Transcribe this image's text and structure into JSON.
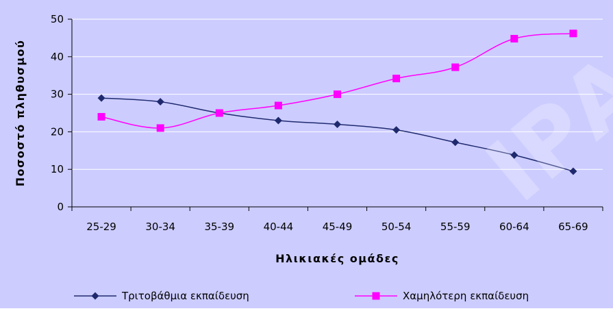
{
  "chart_data": {
    "type": "line",
    "title": "",
    "xlabel": "Ηλικιακές ομάδες",
    "ylabel": "Ποσοστό πληθυσμού",
    "categories": [
      "25-29",
      "30-34",
      "35-39",
      "40-44",
      "45-49",
      "50-54",
      "55-59",
      "60-64",
      "65-69"
    ],
    "ylim": [
      0,
      50
    ],
    "yticks": [
      0,
      10,
      20,
      30,
      40,
      50
    ],
    "grid": true,
    "legend_position": "bottom",
    "series": [
      {
        "name": "Τριτοβάθμια εκπαίδευση",
        "values": [
          29,
          28,
          25,
          23,
          22,
          20.5,
          17.2,
          13.8,
          9.5
        ],
        "color": "#1f2a6e",
        "marker": "diamond"
      },
      {
        "name": "Χαμηλότερη εκπαίδευση",
        "values": [
          24,
          21,
          25,
          27,
          30,
          34.2,
          37.2,
          44.8,
          46.2
        ],
        "color": "#ff00ff",
        "marker": "square"
      }
    ],
    "plot_background": "#ccccff",
    "watermark": "ΙΡΑ"
  }
}
